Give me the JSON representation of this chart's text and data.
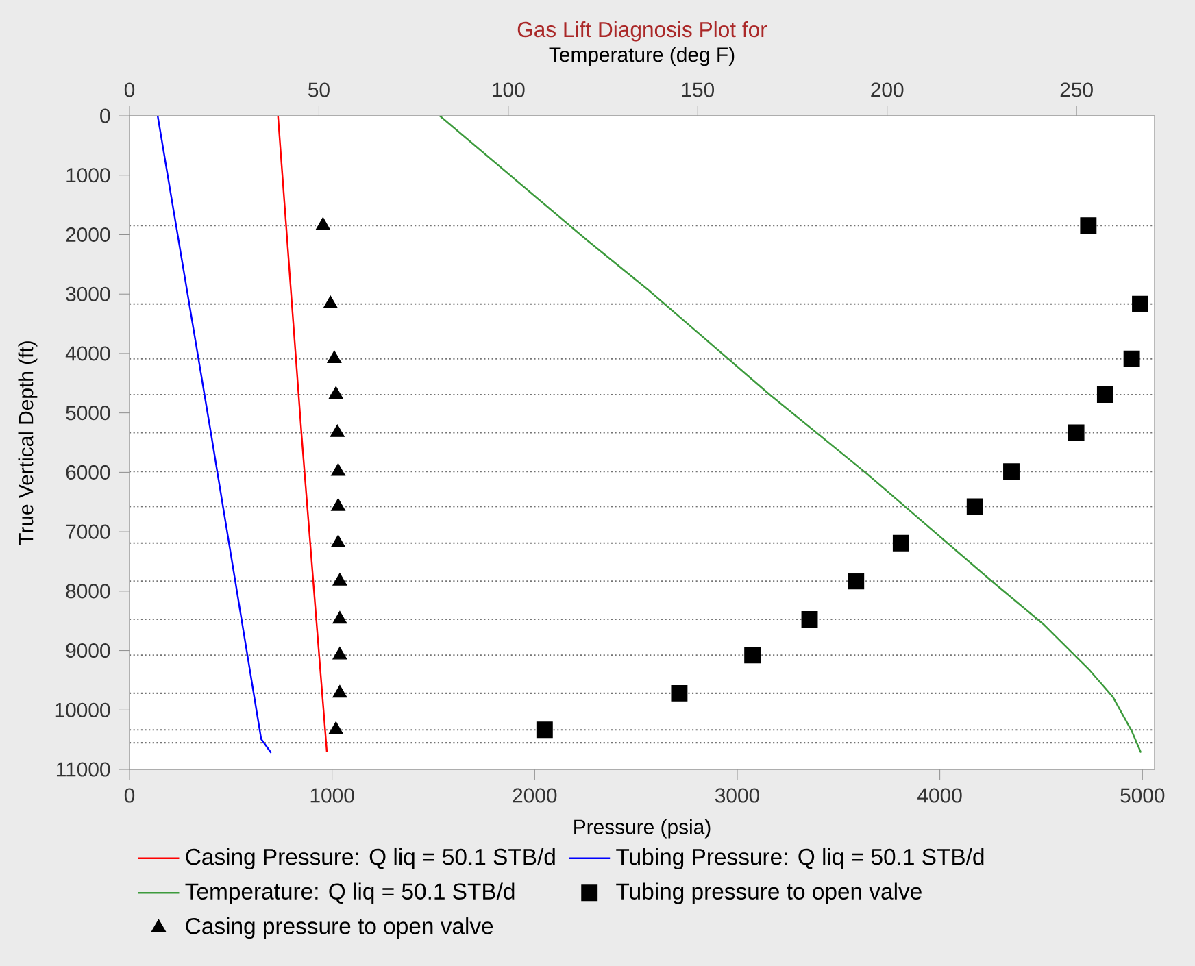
{
  "chart_data": {
    "type": "line",
    "title": "Gas Lift Diagnosis Plot for",
    "xlabel": "Pressure (psia)",
    "x2label": "Temperature (deg F)",
    "ylabel": "True Vertical Depth (ft)",
    "xlim": [
      0,
      5060
    ],
    "xticks": [
      0,
      1000,
      2000,
      3000,
      4000,
      5000
    ],
    "x2lim": [
      0,
      270.6
    ],
    "x2ticks": [
      0,
      50,
      100,
      150,
      200,
      250
    ],
    "ylim": [
      11000,
      0
    ],
    "yticks": [
      0,
      1000,
      2000,
      3000,
      4000,
      5000,
      6000,
      7000,
      8000,
      9000,
      10000,
      11000
    ],
    "grid": false,
    "legend": "bottom",
    "series": [
      {
        "name": "Casing Pressure: Q liq = 50.1 STB/d",
        "color": "#ff0000",
        "x": [
          733,
          850,
          974
        ],
        "values": [
          0,
          5400,
          10700
        ]
      },
      {
        "name": "Tubing Pressure: Q liq = 50.1 STB/d",
        "color": "#0000ff",
        "x": [
          139,
          400,
          650,
          699
        ],
        "values": [
          0,
          5300,
          10490,
          10720
        ]
      },
      {
        "name": "Temperature: Q liq = 50.1 STB/d",
        "color": "#3c9a3c",
        "axis": "x2",
        "x": [
          81.9,
          120.7,
          136.8,
          169,
          194.2,
          227.4,
          241.4,
          253.5,
          259.6,
          264.6,
          267
        ],
        "values": [
          0,
          2090,
          2923,
          4692,
          6000,
          7820,
          8564,
          9333,
          9782,
          10359,
          10718
        ]
      },
      {
        "name": "Tubing pressure to open valve",
        "type": "scatter",
        "marker": "square",
        "color": "#000000",
        "x": [
          4733,
          4989,
          4947,
          4816,
          4673,
          4353,
          4173,
          3808,
          3586,
          3357,
          3075,
          2714,
          2049
        ],
        "values": [
          1846,
          3167,
          4090,
          4692,
          5333,
          5987,
          6577,
          7192,
          7833,
          8474,
          9077,
          9718,
          10333
        ]
      },
      {
        "name": "Casing pressure to open valve",
        "type": "scatter",
        "marker": "triangle",
        "color": "#000000",
        "x": [
          955,
          992,
          1011,
          1019,
          1026,
          1030,
          1030,
          1030,
          1038,
          1038,
          1038,
          1038,
          1019
        ],
        "values": [
          1846,
          3167,
          4090,
          4692,
          5333,
          5987,
          6577,
          7192,
          7833,
          8474,
          9077,
          9718,
          10333
        ]
      }
    ],
    "ref_lines": [
      {
        "axis": "y",
        "value": 1846,
        "line_style": "dotted"
      },
      {
        "axis": "y",
        "value": 3167,
        "line_style": "dotted"
      },
      {
        "axis": "y",
        "value": 4090,
        "line_style": "dotted"
      },
      {
        "axis": "y",
        "value": 4692,
        "line_style": "dotted"
      },
      {
        "axis": "y",
        "value": 5333,
        "line_style": "dotted"
      },
      {
        "axis": "y",
        "value": 5987,
        "line_style": "dotted"
      },
      {
        "axis": "y",
        "value": 6577,
        "line_style": "dotted"
      },
      {
        "axis": "y",
        "value": 7192,
        "line_style": "dotted"
      },
      {
        "axis": "y",
        "value": 7833,
        "line_style": "dotted"
      },
      {
        "axis": "y",
        "value": 8474,
        "line_style": "dotted"
      },
      {
        "axis": "y",
        "value": 9077,
        "line_style": "dotted"
      },
      {
        "axis": "y",
        "value": 9718,
        "line_style": "dotted"
      },
      {
        "axis": "y",
        "value": 10333,
        "line_style": "dotted"
      },
      {
        "axis": "y",
        "value": 10551,
        "line_style": "dotted"
      }
    ]
  }
}
